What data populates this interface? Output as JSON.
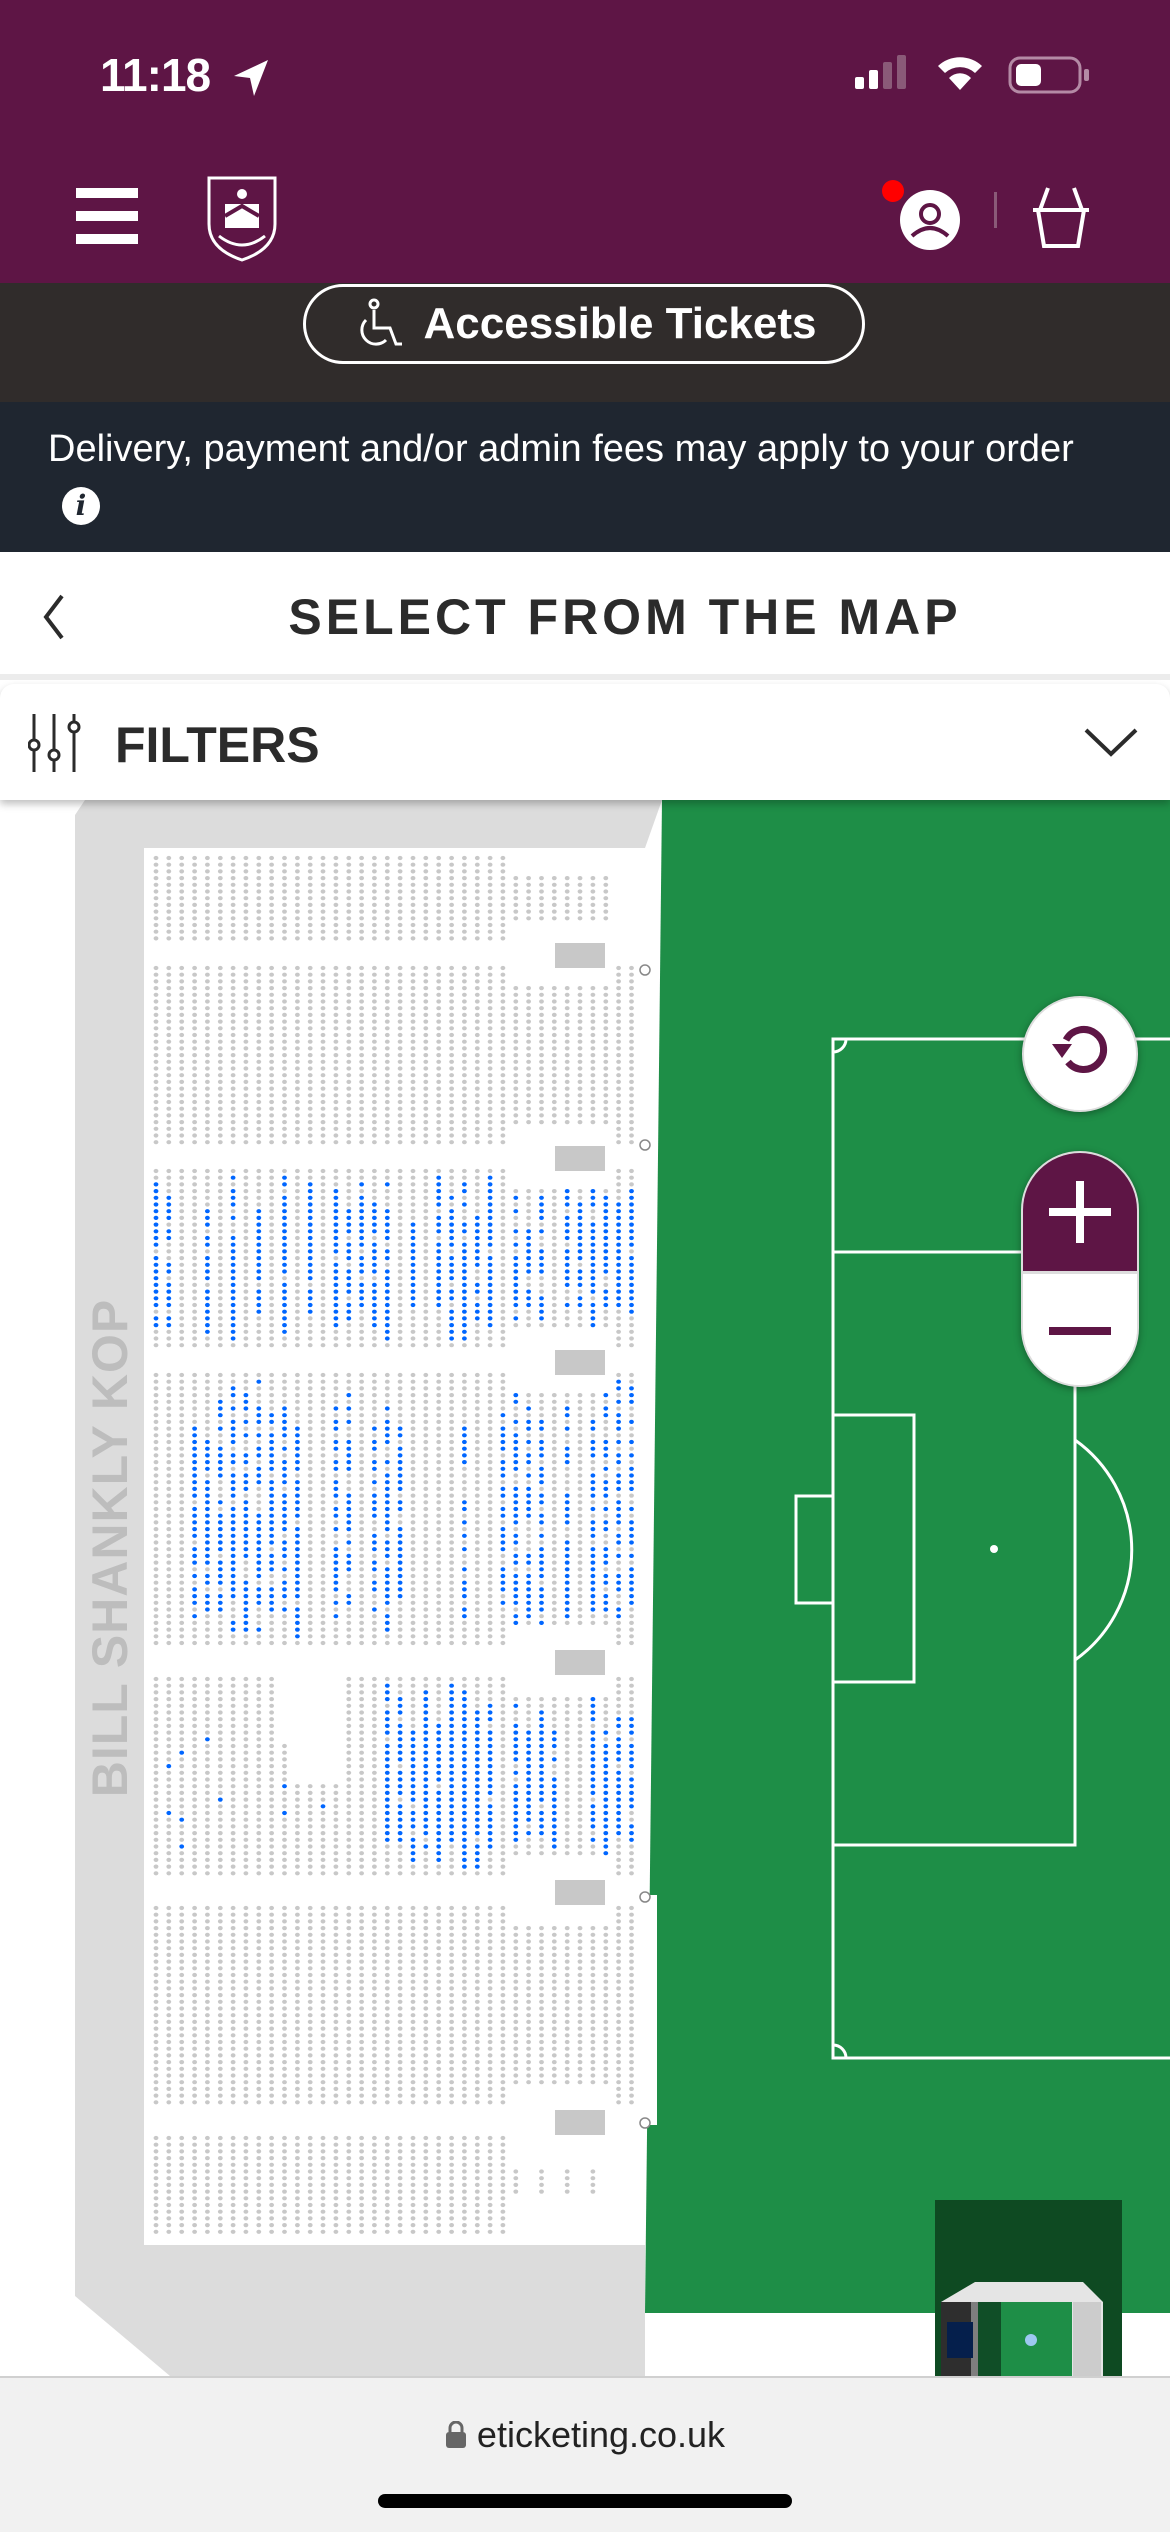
{
  "status_bar": {
    "time": "11:18",
    "signal_bars": 2,
    "battery_percent": 35
  },
  "header": {
    "menu_icon": "hamburger-icon",
    "logo": "club-crest",
    "account_icon": "user-icon",
    "notification_dot_color": "#FF0000",
    "basket_icon": "basket-icon",
    "brand_color": "#5E1545"
  },
  "accessible": {
    "label": "Accessible Tickets",
    "icon": "wheelchair-icon"
  },
  "notice": {
    "text": "Delivery, payment and/or admin fees may apply to your order",
    "icon": "info-icon"
  },
  "page": {
    "title": "SELECT FROM THE MAP",
    "back_icon": "chevron-left-icon"
  },
  "filters": {
    "label": "FILTERS",
    "icon": "sliders-icon",
    "toggle_icon": "chevron-down-icon"
  },
  "map": {
    "stand_label": "BILL SHANKLY KOP",
    "available_seat_color": "#0066FF",
    "unavailable_seat_color": "#C8C8C8",
    "pitch_color": "#1E8E47",
    "controls": {
      "reset_icon": "rotate-icon",
      "zoom_in": "+",
      "zoom_out": "−"
    }
  },
  "browser": {
    "url": "eticketing.co.uk",
    "lock_icon": "lock-icon"
  }
}
